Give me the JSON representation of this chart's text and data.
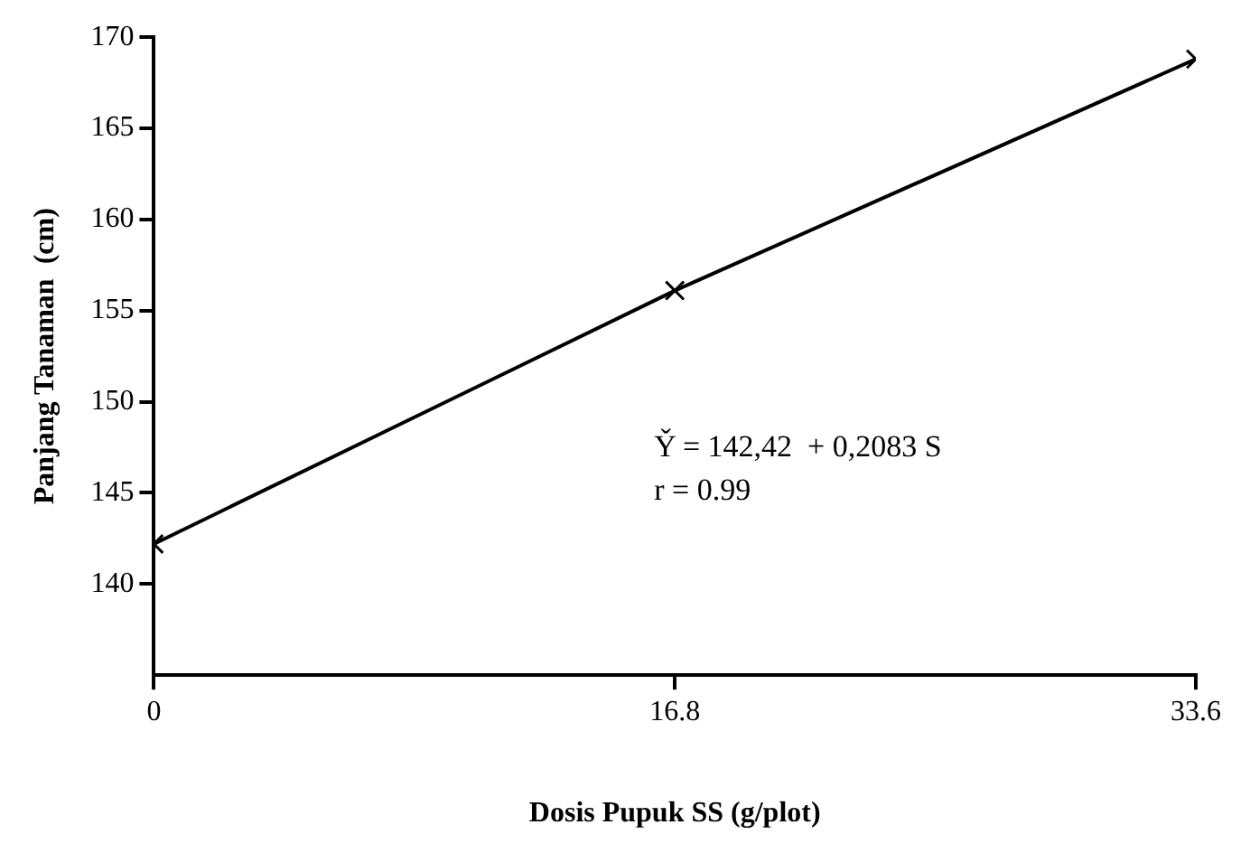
{
  "chart_data": {
    "type": "line",
    "xlabel": "Dosis Pupuk SS (g/plot)",
    "ylabel": "Panjang Tanaman  (cm)",
    "x": [
      0,
      16.8,
      33.6
    ],
    "series": [
      {
        "color": "#000000",
        "values": [
          142.2,
          156.1,
          168.8
        ]
      }
    ],
    "xlim": [
      0,
      33.6
    ],
    "xticks": [
      0,
      16.8,
      33.6
    ],
    "ylim": [
      135,
      170
    ],
    "yticks": [
      140,
      145,
      150,
      155,
      160,
      165,
      170
    ],
    "annotations": [
      "Y̌ = 142,42  + 0,2083 S",
      "r = 0.99"
    ],
    "marker": "cross",
    "line_style": "solid",
    "grid": false,
    "legend": false
  }
}
